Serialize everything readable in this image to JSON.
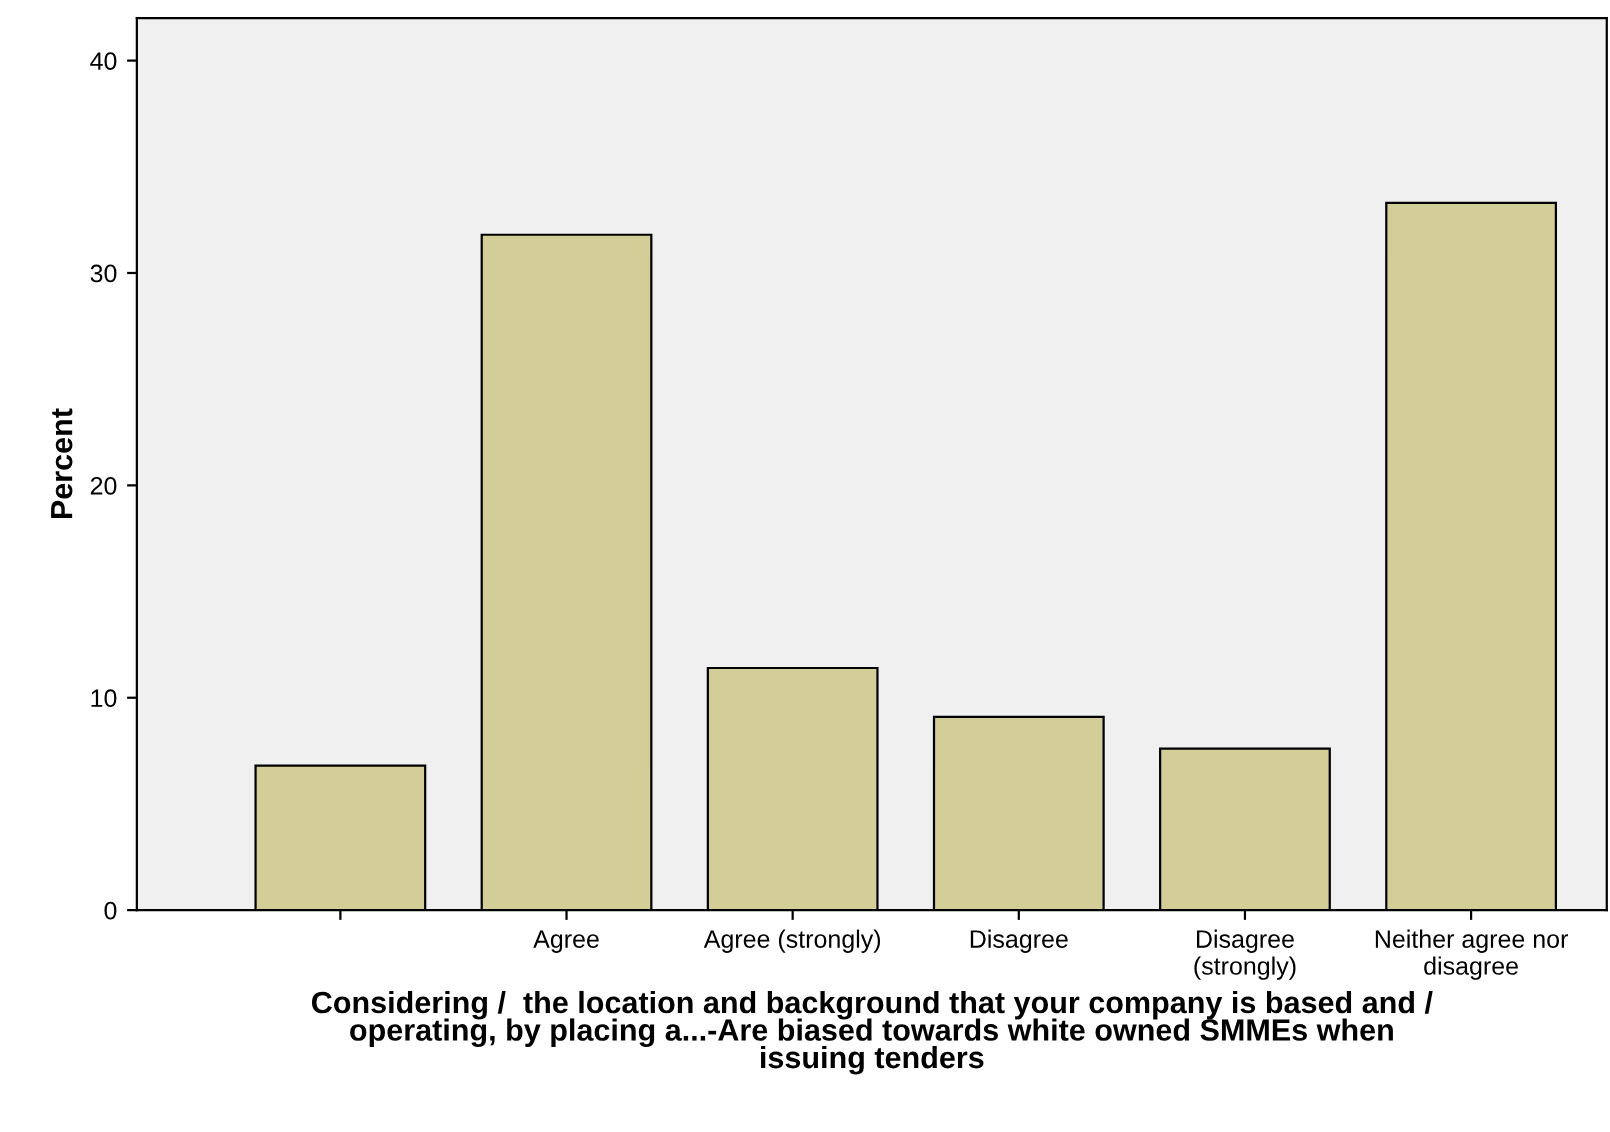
{
  "chart_data": {
    "type": "bar",
    "xlabel": "Considering /  the location and background that your company is based and /\noperating, by placing a...-Are biased towards white owned SMMEs when\nissuing tenders",
    "ylabel": "Percent",
    "categories": [
      null,
      "Agree",
      "Agree (strongly)",
      "Disagree",
      "Disagree\n(strongly)",
      "Neither agree nor\ndisagree"
    ],
    "values": [
      6.8,
      31.8,
      11.4,
      9.1,
      7.6,
      33.3
    ],
    "color": "#d3ce97",
    "ylim": [
      0,
      42
    ],
    "yticks": [
      0,
      10,
      20,
      30,
      40
    ],
    "grid": false,
    "legend": false
  }
}
